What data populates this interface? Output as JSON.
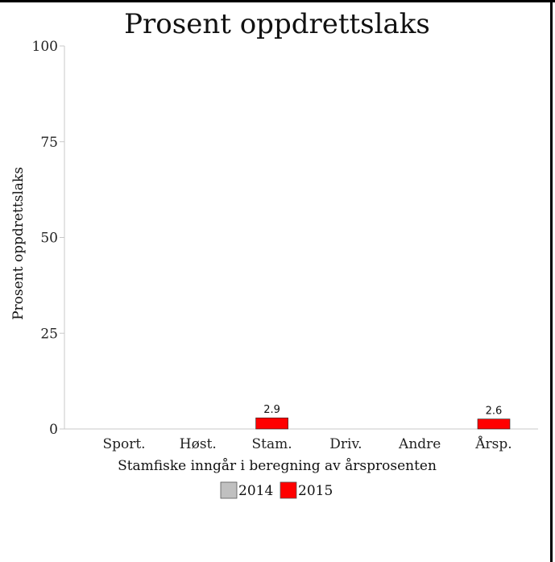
{
  "chart_data": {
    "type": "bar",
    "title": "Prosent oppdrettslaks",
    "ylabel": "Prosent oppdrettslaks",
    "xlabel": "Stamfiske inngår i beregning av årsprosenten",
    "categories": [
      "Sport.",
      "Høst.",
      "Stam.",
      "Driv.",
      "Andre",
      "Årsp."
    ],
    "ylim": [
      0,
      100
    ],
    "yticks": [
      0,
      25,
      50,
      75,
      100
    ],
    "grid": false,
    "legend_position": "bottom",
    "series": [
      {
        "name": "2014",
        "color": "#c0c0c0",
        "values": [
          null,
          null,
          null,
          null,
          null,
          null
        ]
      },
      {
        "name": "2015",
        "color": "#ff0000",
        "values": [
          null,
          null,
          2.9,
          null,
          null,
          2.6
        ]
      }
    ],
    "data_labels": [
      {
        "category": "Stam.",
        "series": "2015",
        "text": "2.9"
      },
      {
        "category": "Årsp.",
        "series": "2015",
        "text": "2.6"
      }
    ]
  }
}
